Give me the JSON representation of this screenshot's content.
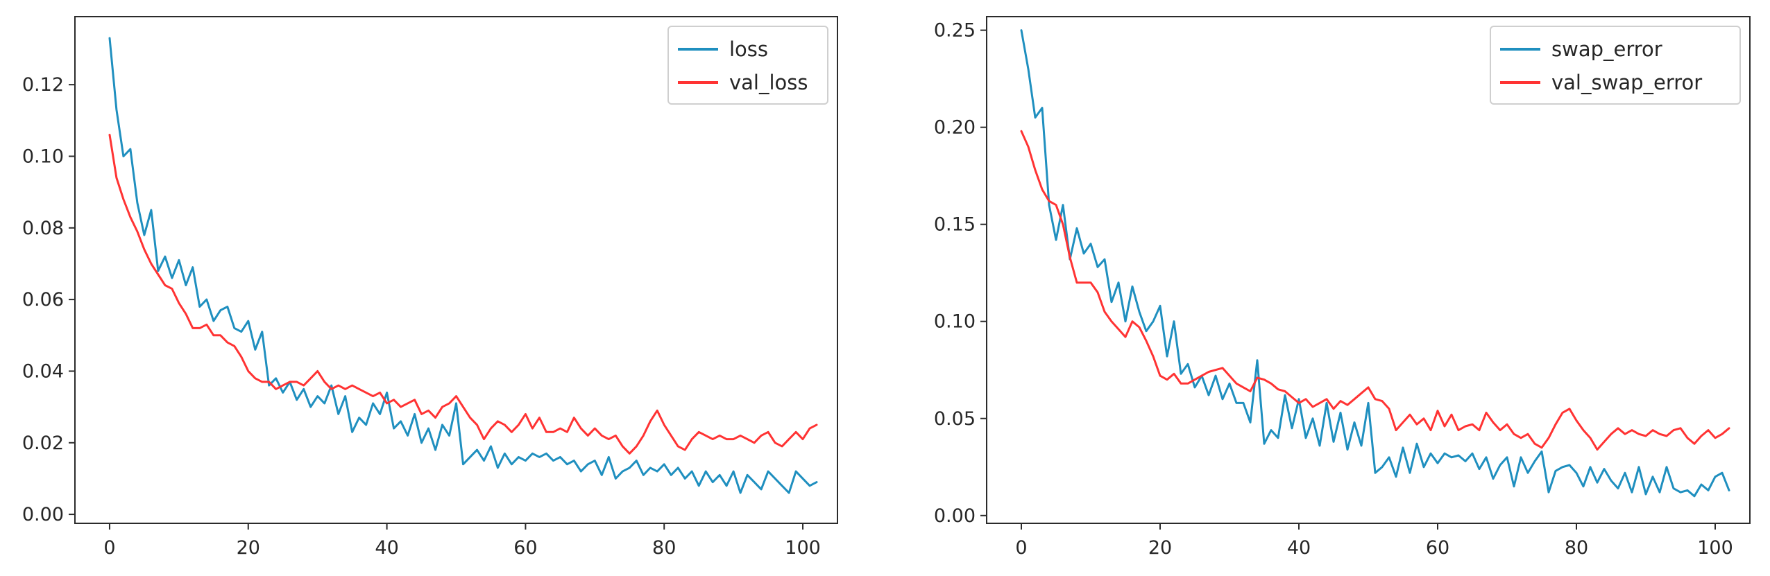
{
  "chart_data": [
    {
      "type": "line",
      "title": "",
      "xlabel": "",
      "ylabel": "",
      "xlim": [
        -5,
        105
      ],
      "ylim": [
        -0.0025,
        0.139
      ],
      "xticks": [
        0,
        20,
        40,
        60,
        80,
        100
      ],
      "yticks": [
        0.0,
        0.02,
        0.04,
        0.06,
        0.08,
        0.1,
        0.12
      ],
      "xtick_labels": [
        "0",
        "20",
        "40",
        "60",
        "80",
        "100"
      ],
      "ytick_labels": [
        "0.00",
        "0.02",
        "0.04",
        "0.06",
        "0.08",
        "0.10",
        "0.12"
      ],
      "grid": false,
      "legend_position": "upper right",
      "series": [
        {
          "name": "loss",
          "color": "#1f8fbf",
          "x": [
            0,
            1,
            2,
            3,
            4,
            5,
            6,
            7,
            8,
            9,
            10,
            11,
            12,
            13,
            14,
            15,
            16,
            17,
            18,
            19,
            20,
            21,
            22,
            23,
            24,
            25,
            26,
            27,
            28,
            29,
            30,
            31,
            32,
            33,
            34,
            35,
            36,
            37,
            38,
            39,
            40,
            41,
            42,
            43,
            44,
            45,
            46,
            47,
            48,
            49,
            50,
            51,
            52,
            53,
            54,
            55,
            56,
            57,
            58,
            59,
            60,
            61,
            62,
            63,
            64,
            65,
            66,
            67,
            68,
            69,
            70,
            71,
            72,
            73,
            74,
            75,
            76,
            77,
            78,
            79,
            80,
            81,
            82,
            83,
            84,
            85,
            86,
            87,
            88,
            89,
            90,
            91,
            92,
            93,
            94,
            95,
            96,
            97,
            98,
            99,
            100,
            101,
            102
          ],
          "values": [
            0.133,
            0.113,
            0.1,
            0.102,
            0.087,
            0.078,
            0.085,
            0.068,
            0.072,
            0.066,
            0.071,
            0.064,
            0.069,
            0.058,
            0.06,
            0.054,
            0.057,
            0.058,
            0.052,
            0.051,
            0.054,
            0.046,
            0.051,
            0.036,
            0.038,
            0.034,
            0.037,
            0.032,
            0.035,
            0.03,
            0.033,
            0.031,
            0.036,
            0.028,
            0.033,
            0.023,
            0.027,
            0.025,
            0.031,
            0.028,
            0.034,
            0.024,
            0.026,
            0.022,
            0.028,
            0.02,
            0.024,
            0.018,
            0.025,
            0.022,
            0.031,
            0.014,
            0.016,
            0.018,
            0.015,
            0.019,
            0.013,
            0.017,
            0.014,
            0.016,
            0.015,
            0.017,
            0.016,
            0.017,
            0.015,
            0.016,
            0.014,
            0.015,
            0.012,
            0.014,
            0.015,
            0.011,
            0.016,
            0.01,
            0.012,
            0.013,
            0.015,
            0.011,
            0.013,
            0.012,
            0.014,
            0.011,
            0.013,
            0.01,
            0.012,
            0.008,
            0.012,
            0.009,
            0.011,
            0.008,
            0.012,
            0.006,
            0.011,
            0.009,
            0.007,
            0.012,
            0.01,
            0.008,
            0.006,
            0.012,
            0.01,
            0.008,
            0.009
          ]
        },
        {
          "name": "val_loss",
          "color": "#ff3333",
          "x": [
            0,
            1,
            2,
            3,
            4,
            5,
            6,
            7,
            8,
            9,
            10,
            11,
            12,
            13,
            14,
            15,
            16,
            17,
            18,
            19,
            20,
            21,
            22,
            23,
            24,
            25,
            26,
            27,
            28,
            29,
            30,
            31,
            32,
            33,
            34,
            35,
            36,
            37,
            38,
            39,
            40,
            41,
            42,
            43,
            44,
            45,
            46,
            47,
            48,
            49,
            50,
            51,
            52,
            53,
            54,
            55,
            56,
            57,
            58,
            59,
            60,
            61,
            62,
            63,
            64,
            65,
            66,
            67,
            68,
            69,
            70,
            71,
            72,
            73,
            74,
            75,
            76,
            77,
            78,
            79,
            80,
            81,
            82,
            83,
            84,
            85,
            86,
            87,
            88,
            89,
            90,
            91,
            92,
            93,
            94,
            95,
            96,
            97,
            98,
            99,
            100,
            101,
            102
          ],
          "values": [
            0.106,
            0.094,
            0.088,
            0.083,
            0.079,
            0.074,
            0.07,
            0.067,
            0.064,
            0.063,
            0.059,
            0.056,
            0.052,
            0.052,
            0.053,
            0.05,
            0.05,
            0.048,
            0.047,
            0.044,
            0.04,
            0.038,
            0.037,
            0.037,
            0.035,
            0.036,
            0.037,
            0.037,
            0.036,
            0.038,
            0.04,
            0.037,
            0.035,
            0.036,
            0.035,
            0.036,
            0.035,
            0.034,
            0.033,
            0.034,
            0.031,
            0.032,
            0.03,
            0.031,
            0.032,
            0.028,
            0.029,
            0.027,
            0.03,
            0.031,
            0.033,
            0.03,
            0.027,
            0.025,
            0.021,
            0.024,
            0.026,
            0.025,
            0.023,
            0.025,
            0.028,
            0.024,
            0.027,
            0.023,
            0.023,
            0.024,
            0.023,
            0.027,
            0.024,
            0.022,
            0.024,
            0.022,
            0.021,
            0.022,
            0.019,
            0.017,
            0.019,
            0.022,
            0.026,
            0.029,
            0.025,
            0.022,
            0.019,
            0.018,
            0.021,
            0.023,
            0.022,
            0.021,
            0.022,
            0.021,
            0.021,
            0.022,
            0.021,
            0.02,
            0.022,
            0.023,
            0.02,
            0.019,
            0.021,
            0.023,
            0.021,
            0.024,
            0.025
          ]
        }
      ]
    },
    {
      "type": "line",
      "title": "",
      "xlabel": "",
      "ylabel": "",
      "xlim": [
        -5,
        105
      ],
      "ylim": [
        -0.004,
        0.257
      ],
      "xticks": [
        0,
        20,
        40,
        60,
        80,
        100
      ],
      "yticks": [
        0.0,
        0.05,
        0.1,
        0.15,
        0.2,
        0.25
      ],
      "xtick_labels": [
        "0",
        "20",
        "40",
        "60",
        "80",
        "100"
      ],
      "ytick_labels": [
        "0.00",
        "0.05",
        "0.10",
        "0.15",
        "0.20",
        "0.25"
      ],
      "grid": false,
      "legend_position": "upper right",
      "series": [
        {
          "name": "swap_error",
          "color": "#1f8fbf",
          "x": [
            0,
            1,
            2,
            3,
            4,
            5,
            6,
            7,
            8,
            9,
            10,
            11,
            12,
            13,
            14,
            15,
            16,
            17,
            18,
            19,
            20,
            21,
            22,
            23,
            24,
            25,
            26,
            27,
            28,
            29,
            30,
            31,
            32,
            33,
            34,
            35,
            36,
            37,
            38,
            39,
            40,
            41,
            42,
            43,
            44,
            45,
            46,
            47,
            48,
            49,
            50,
            51,
            52,
            53,
            54,
            55,
            56,
            57,
            58,
            59,
            60,
            61,
            62,
            63,
            64,
            65,
            66,
            67,
            68,
            69,
            70,
            71,
            72,
            73,
            74,
            75,
            76,
            77,
            78,
            79,
            80,
            81,
            82,
            83,
            84,
            85,
            86,
            87,
            88,
            89,
            90,
            91,
            92,
            93,
            94,
            95,
            96,
            97,
            98,
            99,
            100,
            101,
            102
          ],
          "values": [
            0.25,
            0.23,
            0.205,
            0.21,
            0.16,
            0.142,
            0.16,
            0.132,
            0.148,
            0.135,
            0.14,
            0.128,
            0.132,
            0.11,
            0.12,
            0.1,
            0.118,
            0.105,
            0.095,
            0.1,
            0.108,
            0.082,
            0.1,
            0.073,
            0.078,
            0.066,
            0.072,
            0.062,
            0.072,
            0.06,
            0.068,
            0.058,
            0.058,
            0.048,
            0.08,
            0.037,
            0.044,
            0.04,
            0.062,
            0.045,
            0.06,
            0.04,
            0.05,
            0.036,
            0.058,
            0.038,
            0.053,
            0.034,
            0.048,
            0.036,
            0.058,
            0.022,
            0.025,
            0.03,
            0.02,
            0.035,
            0.022,
            0.037,
            0.025,
            0.032,
            0.027,
            0.032,
            0.03,
            0.031,
            0.028,
            0.032,
            0.024,
            0.03,
            0.019,
            0.026,
            0.03,
            0.015,
            0.03,
            0.022,
            0.028,
            0.033,
            0.012,
            0.023,
            0.025,
            0.026,
            0.022,
            0.015,
            0.025,
            0.017,
            0.024,
            0.018,
            0.014,
            0.022,
            0.012,
            0.025,
            0.011,
            0.02,
            0.012,
            0.025,
            0.014,
            0.012,
            0.013,
            0.01,
            0.016,
            0.013,
            0.02,
            0.022,
            0.013
          ]
        },
        {
          "name": "val_swap_error",
          "color": "#ff3333",
          "x": [
            0,
            1,
            2,
            3,
            4,
            5,
            6,
            7,
            8,
            9,
            10,
            11,
            12,
            13,
            14,
            15,
            16,
            17,
            18,
            19,
            20,
            21,
            22,
            23,
            24,
            25,
            26,
            27,
            28,
            29,
            30,
            31,
            32,
            33,
            34,
            35,
            36,
            37,
            38,
            39,
            40,
            41,
            42,
            43,
            44,
            45,
            46,
            47,
            48,
            49,
            50,
            51,
            52,
            53,
            54,
            55,
            56,
            57,
            58,
            59,
            60,
            61,
            62,
            63,
            64,
            65,
            66,
            67,
            68,
            69,
            70,
            71,
            72,
            73,
            74,
            75,
            76,
            77,
            78,
            79,
            80,
            81,
            82,
            83,
            84,
            85,
            86,
            87,
            88,
            89,
            90,
            91,
            92,
            93,
            94,
            95,
            96,
            97,
            98,
            99,
            100,
            101,
            102
          ],
          "values": [
            0.198,
            0.19,
            0.178,
            0.168,
            0.162,
            0.16,
            0.15,
            0.133,
            0.12,
            0.12,
            0.12,
            0.115,
            0.105,
            0.1,
            0.096,
            0.092,
            0.1,
            0.097,
            0.09,
            0.082,
            0.072,
            0.07,
            0.073,
            0.068,
            0.068,
            0.07,
            0.072,
            0.074,
            0.075,
            0.076,
            0.072,
            0.068,
            0.066,
            0.064,
            0.071,
            0.07,
            0.068,
            0.065,
            0.064,
            0.061,
            0.058,
            0.06,
            0.056,
            0.058,
            0.06,
            0.055,
            0.059,
            0.057,
            0.06,
            0.063,
            0.066,
            0.06,
            0.059,
            0.055,
            0.044,
            0.048,
            0.052,
            0.047,
            0.05,
            0.044,
            0.054,
            0.046,
            0.052,
            0.044,
            0.046,
            0.047,
            0.044,
            0.053,
            0.048,
            0.044,
            0.047,
            0.042,
            0.04,
            0.042,
            0.037,
            0.035,
            0.04,
            0.047,
            0.053,
            0.055,
            0.049,
            0.044,
            0.04,
            0.034,
            0.038,
            0.042,
            0.045,
            0.042,
            0.044,
            0.042,
            0.041,
            0.044,
            0.042,
            0.041,
            0.044,
            0.045,
            0.04,
            0.037,
            0.041,
            0.044,
            0.04,
            0.042,
            0.045
          ]
        }
      ]
    }
  ]
}
